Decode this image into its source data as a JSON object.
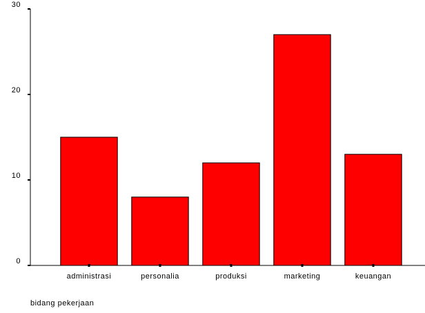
{
  "chart_data": {
    "type": "bar",
    "x_label": "bidang pekerjaan",
    "categories": [
      "administrasi",
      "personalia",
      "produksi",
      "marketing",
      "keuangan"
    ],
    "values": [
      15,
      8,
      12,
      27,
      13
    ],
    "color": "#ff0000",
    "ylim": [
      0,
      30
    ],
    "yticks": [
      0,
      10,
      20,
      30
    ],
    "grid": false
  }
}
